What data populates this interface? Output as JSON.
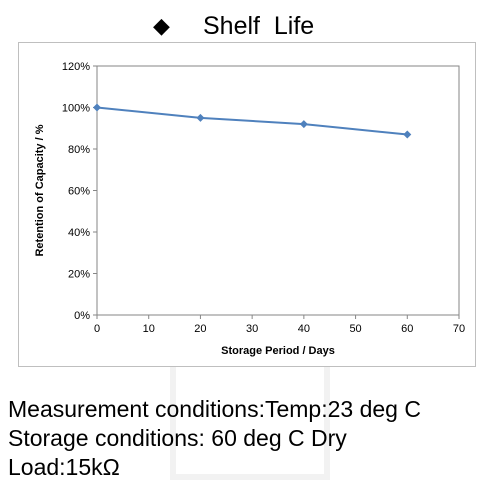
{
  "heading": {
    "bullet": "◆",
    "title": "Shelf  Life"
  },
  "conditions": [
    "Measurement conditions:Temp:23 deg C",
    "Storage conditions: 60 deg C Dry",
    "Load:15kΩ"
  ],
  "colors": {
    "series_line": "#4f81bd",
    "series_marker": "#4f81bd",
    "plot_border": "#868686",
    "frame_border": "#bfbfbf"
  },
  "chart_data": {
    "type": "line",
    "xlabel": "Storage Period / Days",
    "ylabel": "Retention of Capacity / %",
    "xlim": [
      0,
      70
    ],
    "ylim": [
      0,
      120
    ],
    "x_ticks": [
      0,
      10,
      20,
      30,
      40,
      50,
      60,
      70
    ],
    "y_ticks": [
      0,
      20,
      40,
      60,
      80,
      100,
      120
    ],
    "y_tick_labels": [
      "0%",
      "20%",
      "40%",
      "60%",
      "80%",
      "100%",
      "120%"
    ],
    "grid": false,
    "legend": "none",
    "marker": "diamond",
    "series": [
      {
        "x": [
          0,
          20,
          40,
          60
        ],
        "values": [
          100,
          95,
          92,
          87
        ]
      }
    ]
  }
}
